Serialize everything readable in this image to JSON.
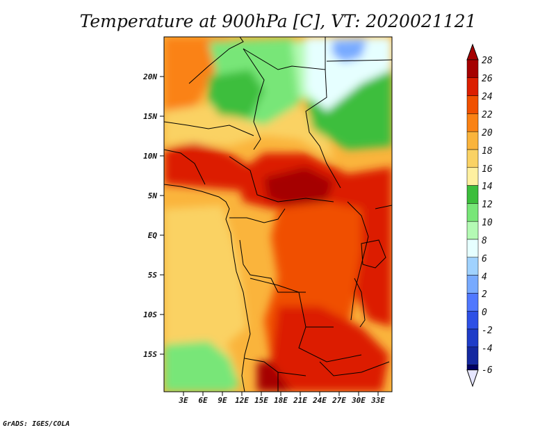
{
  "title": "Temperature at 900hPa [C], VT: 2020021121",
  "credit": "GrADS: IGES/COLA",
  "map": {
    "lat_labels": [
      "20N",
      "15N",
      "10N",
      "5N",
      "EQ",
      "5S",
      "10S",
      "15S"
    ],
    "lon_labels": [
      "3E",
      "6E",
      "9E",
      "12E",
      "15E",
      "18E",
      "21E",
      "24E",
      "27E",
      "30E",
      "33E"
    ],
    "lon_range": [
      0,
      35
    ],
    "lat_range": [
      -20,
      24
    ]
  },
  "colorbar": {
    "labels": [
      "28",
      "26",
      "24",
      "22",
      "20",
      "18",
      "16",
      "14",
      "12",
      "10",
      "8",
      "6",
      "4",
      "2",
      "0",
      "-2",
      "-4",
      "-6"
    ],
    "colors": [
      "#a50000",
      "#dc1e00",
      "#f05000",
      "#fa8214",
      "#fab43c",
      "#fad264",
      "#fff0a0",
      "#3cbe3c",
      "#78e678",
      "#b4fab4",
      "#e6ffff",
      "#a0d2ff",
      "#78aaff",
      "#5078ff",
      "#2d50e6",
      "#1e3cc8",
      "#1428a0",
      "#000064"
    ]
  },
  "regions": {
    "north_green": "#78e678",
    "sahel_green": "#3cbe3c",
    "dry_cyan": "#e6ffff",
    "blue": "#78aaff",
    "warm_band": "#dc1e00",
    "hot_core": "#a50000",
    "ocean": "#fab43c",
    "south_green": "#78e678"
  }
}
